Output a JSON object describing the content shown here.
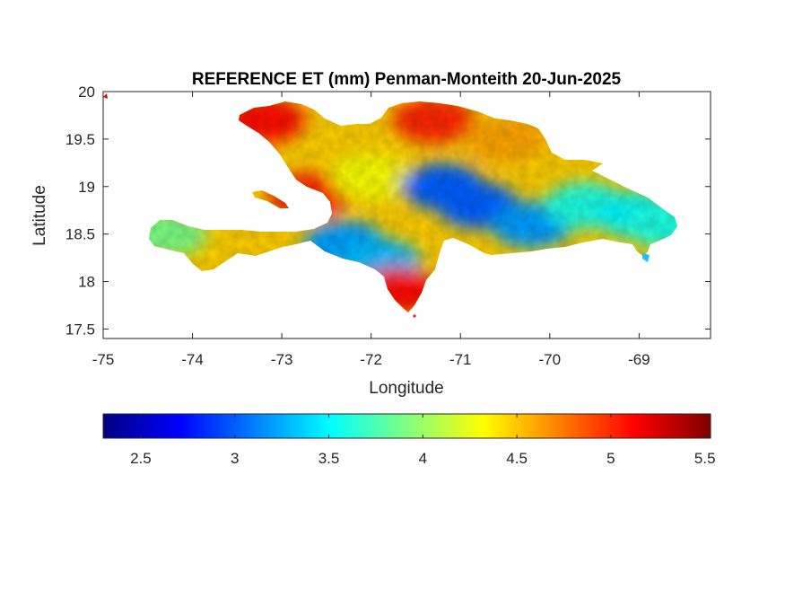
{
  "title": "REFERENCE ET (mm) Penman-Monteith 20-Jun-2025",
  "map": {
    "xlabel": "Longitude",
    "ylabel": "Latitude",
    "xlim": [
      -75,
      -68.2
    ],
    "ylim": [
      17.4,
      20
    ],
    "xticks": [
      "-75",
      "-74",
      "-73",
      "-72",
      "-71",
      "-70",
      "-69"
    ],
    "yticks": [
      "20",
      "19.5",
      "19",
      "18.5",
      "18",
      "17.5"
    ],
    "colormap": "jet",
    "projection": "longitude-latitude"
  },
  "colorbar": {
    "orientation": "horizontal",
    "range": [
      2.3,
      5.53
    ],
    "ticks": [
      "2.5",
      "3",
      "3.5",
      "4",
      "4.5",
      "5",
      "5.5"
    ],
    "colors": [
      "#000080",
      "#0000ff",
      "#0080ff",
      "#00ffff",
      "#80ff80",
      "#ffff00",
      "#ff8000",
      "#ff0000",
      "#800000"
    ]
  },
  "chart_data": {
    "type": "heatmap",
    "title": "REFERENCE ET (mm) Penman-Monteith 20-Jun-2025",
    "xlabel": "Longitude",
    "ylabel": "Latitude",
    "xlim": [
      -75,
      -68.2
    ],
    "ylim": [
      17.4,
      20
    ],
    "value_range": [
      2.3,
      5.53
    ],
    "regions": [
      {
        "lon": -73.2,
        "lat": 19.7,
        "et": 5.1
      },
      {
        "lon": -72.7,
        "lat": 18.9,
        "et": 5.0
      },
      {
        "lon": -74.3,
        "lat": 18.5,
        "et": 3.9
      },
      {
        "lon": -72.3,
        "lat": 18.4,
        "et": 3.2
      },
      {
        "lon": -71.9,
        "lat": 18.2,
        "et": 3.3
      },
      {
        "lon": -71.7,
        "lat": 17.9,
        "et": 5.1
      },
      {
        "lon": -72.0,
        "lat": 19.1,
        "et": 4.3
      },
      {
        "lon": -71.2,
        "lat": 19.0,
        "et": 3.0
      },
      {
        "lon": -70.8,
        "lat": 18.8,
        "et": 3.0
      },
      {
        "lon": -71.3,
        "lat": 19.7,
        "et": 5.0
      },
      {
        "lon": -70.5,
        "lat": 19.5,
        "et": 4.6
      },
      {
        "lon": -70.2,
        "lat": 18.6,
        "et": 3.2
      },
      {
        "lon": -69.6,
        "lat": 18.8,
        "et": 3.6
      },
      {
        "lon": -69.0,
        "lat": 18.7,
        "et": 3.5
      },
      {
        "lon": -68.7,
        "lat": 18.6,
        "et": 3.6
      }
    ]
  }
}
